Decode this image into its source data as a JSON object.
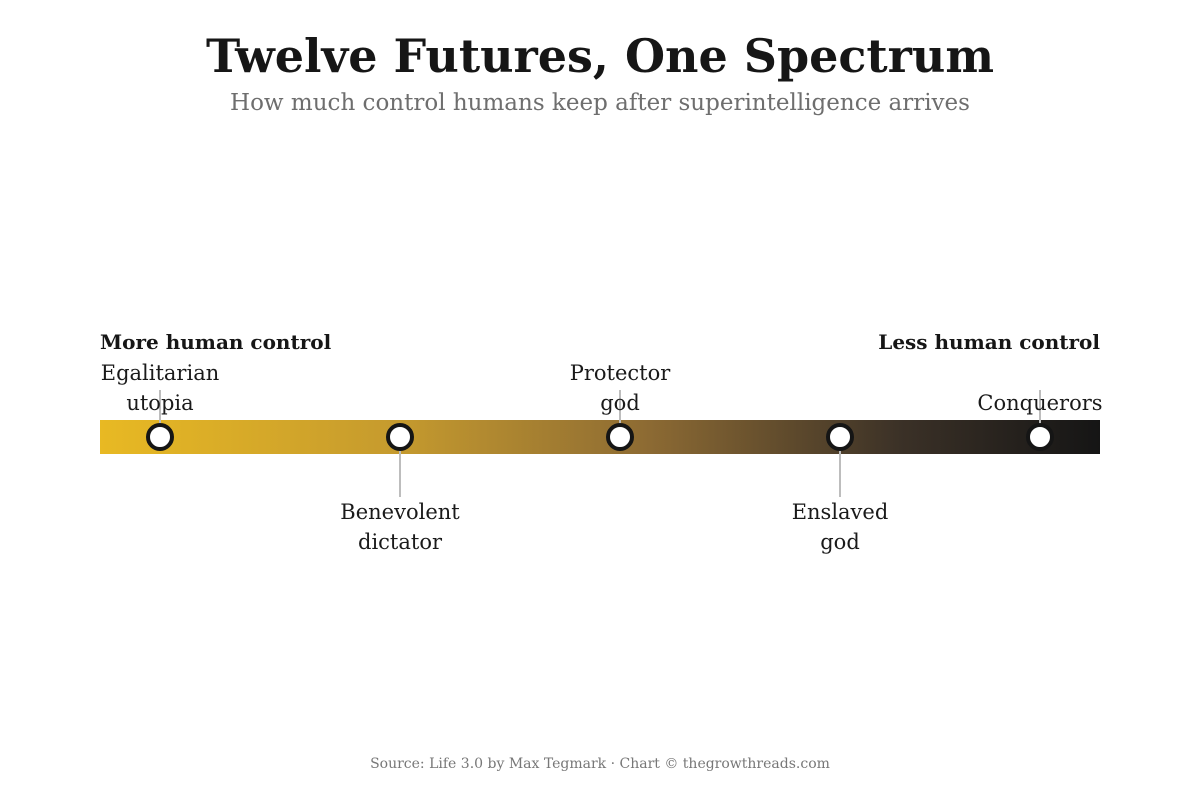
{
  "header": {
    "title": "Twelve Futures, One Spectrum",
    "subtitle": "How much control humans keep after superintelligence arrives"
  },
  "spectrum": {
    "left_end_label": "More human control",
    "right_end_label": "Less human control",
    "gradient_colors": [
      "#e8b923",
      "#c59a2e",
      "#8c6a33",
      "#3b3127",
      "#151515"
    ],
    "markers": [
      {
        "id": "egalitarian-utopia",
        "lines": [
          "Egalitarian",
          "utopia"
        ],
        "position": 0.06,
        "label_side": "above"
      },
      {
        "id": "benevolent-dictator",
        "lines": [
          "Benevolent",
          "dictator"
        ],
        "position": 0.3,
        "label_side": "below"
      },
      {
        "id": "protector-god",
        "lines": [
          "Protector",
          "god"
        ],
        "position": 0.52,
        "label_side": "above"
      },
      {
        "id": "enslaved-god",
        "lines": [
          "Enslaved",
          "god"
        ],
        "position": 0.74,
        "label_side": "below"
      },
      {
        "id": "conquerors",
        "lines": [
          "Conquerors"
        ],
        "position": 0.94,
        "label_side": "above"
      }
    ]
  },
  "footer": {
    "source": "Source: Life 3.0 by Max Tegmark · Chart © thegrowthreads.com"
  }
}
